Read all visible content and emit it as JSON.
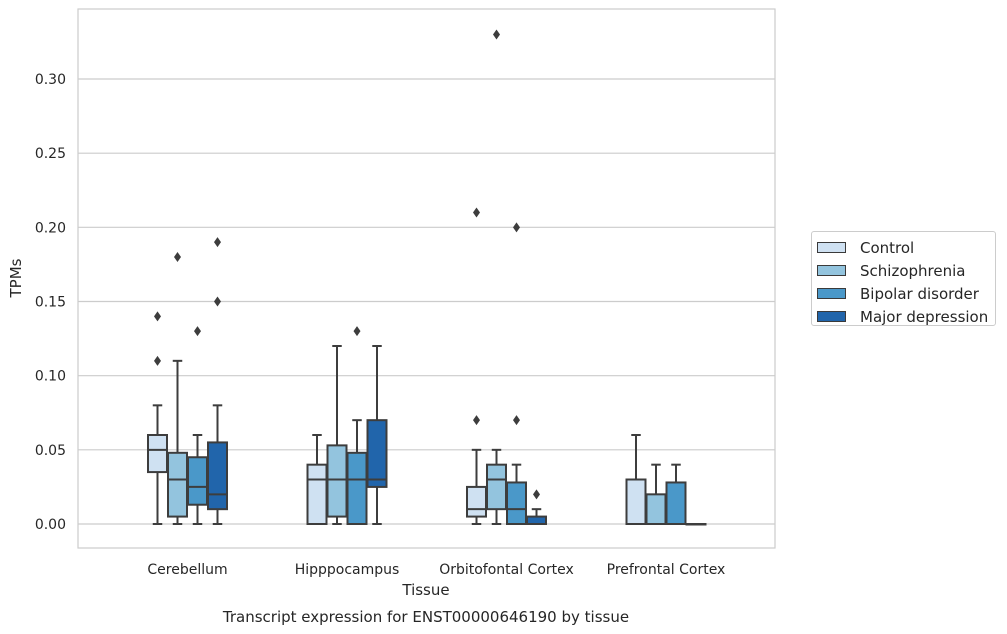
{
  "chart_data": {
    "type": "boxplot",
    "title": "",
    "caption": "Transcript expression for ENST00000646190 by tissue",
    "xlabel": "Tissue",
    "ylabel": "TPMs",
    "ylim": [
      -0.0165,
      0.347
    ],
    "yticks": [
      "0.00",
      "0.05",
      "0.10",
      "0.15",
      "0.20",
      "0.25",
      "0.30"
    ],
    "grid": "horizontal",
    "legend_position": "right",
    "categories": [
      "Cerebellum",
      "Hipppocampus",
      "Orbitofontal Cortex",
      "Prefrontal Cortex"
    ],
    "series": [
      {
        "name": "Control",
        "color": "#cfe1f2",
        "boxes": [
          {
            "whisker_low": 0.0,
            "q1": 0.035,
            "median": 0.05,
            "q3": 0.06,
            "whisker_high": 0.08,
            "outliers": [
              0.11,
              0.14
            ]
          },
          {
            "whisker_low": 0.0,
            "q1": 0.0,
            "median": 0.03,
            "q3": 0.04,
            "whisker_high": 0.06,
            "outliers": []
          },
          {
            "whisker_low": 0.0,
            "q1": 0.005,
            "median": 0.01,
            "q3": 0.025,
            "whisker_high": 0.05,
            "outliers": [
              0.07,
              0.21
            ]
          },
          {
            "whisker_low": 0.0,
            "q1": 0.0,
            "median": 0.0,
            "q3": 0.03,
            "whisker_high": 0.06,
            "outliers": []
          }
        ]
      },
      {
        "name": "Schizophrenia",
        "color": "#93c4de",
        "boxes": [
          {
            "whisker_low": 0.0,
            "q1": 0.005,
            "median": 0.03,
            "q3": 0.048,
            "whisker_high": 0.11,
            "outliers": [
              0.18
            ]
          },
          {
            "whisker_low": 0.0,
            "q1": 0.005,
            "median": 0.03,
            "q3": 0.053,
            "whisker_high": 0.12,
            "outliers": []
          },
          {
            "whisker_low": 0.0,
            "q1": 0.01,
            "median": 0.03,
            "q3": 0.04,
            "whisker_high": 0.05,
            "outliers": [
              0.33
            ]
          },
          {
            "whisker_low": 0.0,
            "q1": 0.0,
            "median": 0.0,
            "q3": 0.02,
            "whisker_high": 0.04,
            "outliers": []
          }
        ]
      },
      {
        "name": "Bipolar disorder",
        "color": "#4a98c9",
        "boxes": [
          {
            "whisker_low": 0.0,
            "q1": 0.013,
            "median": 0.025,
            "q3": 0.045,
            "whisker_high": 0.06,
            "outliers": [
              0.13
            ]
          },
          {
            "whisker_low": 0.0,
            "q1": 0.0,
            "median": 0.03,
            "q3": 0.048,
            "whisker_high": 0.07,
            "outliers": [
              0.13
            ]
          },
          {
            "whisker_low": 0.0,
            "q1": 0.0,
            "median": 0.01,
            "q3": 0.028,
            "whisker_high": 0.04,
            "outliers": [
              0.07,
              0.2
            ]
          },
          {
            "whisker_low": 0.0,
            "q1": 0.0,
            "median": 0.0,
            "q3": 0.028,
            "whisker_high": 0.04,
            "outliers": []
          }
        ]
      },
      {
        "name": "Major depression",
        "color": "#2165ab",
        "boxes": [
          {
            "whisker_low": 0.0,
            "q1": 0.01,
            "median": 0.02,
            "q3": 0.055,
            "whisker_high": 0.08,
            "outliers": [
              0.15,
              0.19
            ]
          },
          {
            "whisker_low": 0.0,
            "q1": 0.025,
            "median": 0.03,
            "q3": 0.07,
            "whisker_high": 0.12,
            "outliers": []
          },
          {
            "whisker_low": 0.0,
            "q1": 0.0,
            "median": 0.0,
            "q3": 0.005,
            "whisker_high": 0.01,
            "outliers": [
              0.02
            ]
          },
          {
            "whisker_low": 0.0,
            "q1": 0.0,
            "median": 0.0,
            "q3": 0.0,
            "whisker_high": 0.0,
            "outliers": []
          }
        ]
      }
    ]
  }
}
